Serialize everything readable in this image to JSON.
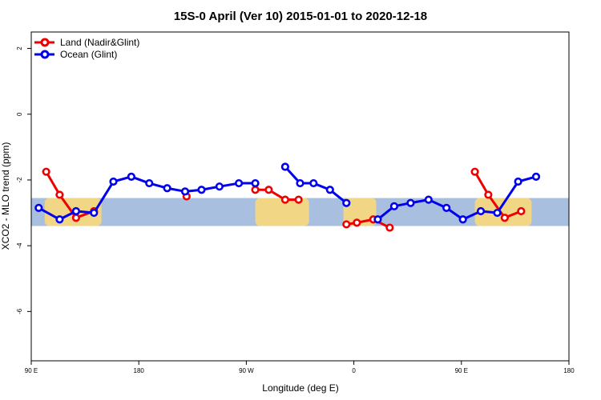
{
  "chart_data": {
    "type": "line",
    "title": "15S-0 April (Ver 10)   2015-01-01 to 2020-12-18",
    "xlabel": "Longitude (deg E)",
    "ylabel": "XCO2 - MLO trend (ppm)",
    "xlim": [
      90,
      450
    ],
    "ylim": [
      -7.5,
      2.5
    ],
    "x_ticks": [
      90,
      162,
      234,
      306,
      378,
      450
    ],
    "x_tick_labels": [
      "90 E",
      "180",
      "90 W",
      "0",
      "90 E",
      "180"
    ],
    "y_ticks": [
      2,
      0,
      -2,
      -4,
      -6
    ],
    "y_tick_labels": [
      "2",
      "0",
      "-2",
      "-4",
      "-6"
    ],
    "latitude_band": {
      "ymin": -3.4,
      "ymax": -2.55,
      "color": "#a8bfdf",
      "land_color": "#fed976"
    },
    "land_regions": [
      {
        "name": "australia-west",
        "x1": 99,
        "x2": 137
      },
      {
        "name": "south-america",
        "x1": 240,
        "x2": 276
      },
      {
        "name": "africa",
        "x1": 299,
        "x2": 321
      },
      {
        "name": "australia-east",
        "x1": 387,
        "x2": 425
      }
    ],
    "series": [
      {
        "name": "Land (Nadir&Glint)",
        "color": "#ee0000",
        "segments": [
          [
            [
              100,
              -1.75
            ],
            [
              109,
              -2.45
            ],
            [
              120,
              -3.15
            ],
            [
              132,
              -2.95
            ]
          ],
          [
            [
              194,
              -2.5
            ]
          ],
          [
            [
              240,
              -2.3
            ],
            [
              249,
              -2.3
            ],
            [
              260,
              -2.6
            ],
            [
              269,
              -2.6
            ]
          ],
          [
            [
              301,
              -3.35
            ],
            [
              308,
              -3.3
            ],
            [
              319,
              -3.2
            ],
            [
              330,
              -3.45
            ]
          ],
          [
            [
              387,
              -1.75
            ],
            [
              396,
              -2.45
            ],
            [
              407,
              -3.15
            ],
            [
              418,
              -2.95
            ]
          ]
        ]
      },
      {
        "name": "Ocean (Glint)",
        "color": "#0000ee",
        "segments": [
          [
            [
              95,
              -2.85
            ],
            [
              109,
              -3.2
            ],
            [
              120,
              -2.95
            ],
            [
              132,
              -3.0
            ],
            [
              145,
              -2.05
            ],
            [
              157,
              -1.9
            ],
            [
              169,
              -2.1
            ],
            [
              181,
              -2.25
            ],
            [
              193,
              -2.35
            ],
            [
              204,
              -2.3
            ],
            [
              216,
              -2.2
            ],
            [
              229,
              -2.1
            ],
            [
              240,
              -2.1
            ]
          ],
          [
            [
              260,
              -1.6
            ],
            [
              270,
              -2.1
            ],
            [
              279,
              -2.1
            ],
            [
              290,
              -2.3
            ],
            [
              301,
              -2.7
            ]
          ],
          [
            [
              322,
              -3.2
            ],
            [
              333,
              -2.8
            ],
            [
              344,
              -2.7
            ],
            [
              356,
              -2.6
            ],
            [
              368,
              -2.85
            ],
            [
              379,
              -3.2
            ],
            [
              391,
              -2.95
            ],
            [
              402,
              -3.0
            ],
            [
              416,
              -2.05
            ],
            [
              428,
              -1.9
            ]
          ]
        ]
      }
    ],
    "legend": {
      "position": "top-left"
    }
  }
}
